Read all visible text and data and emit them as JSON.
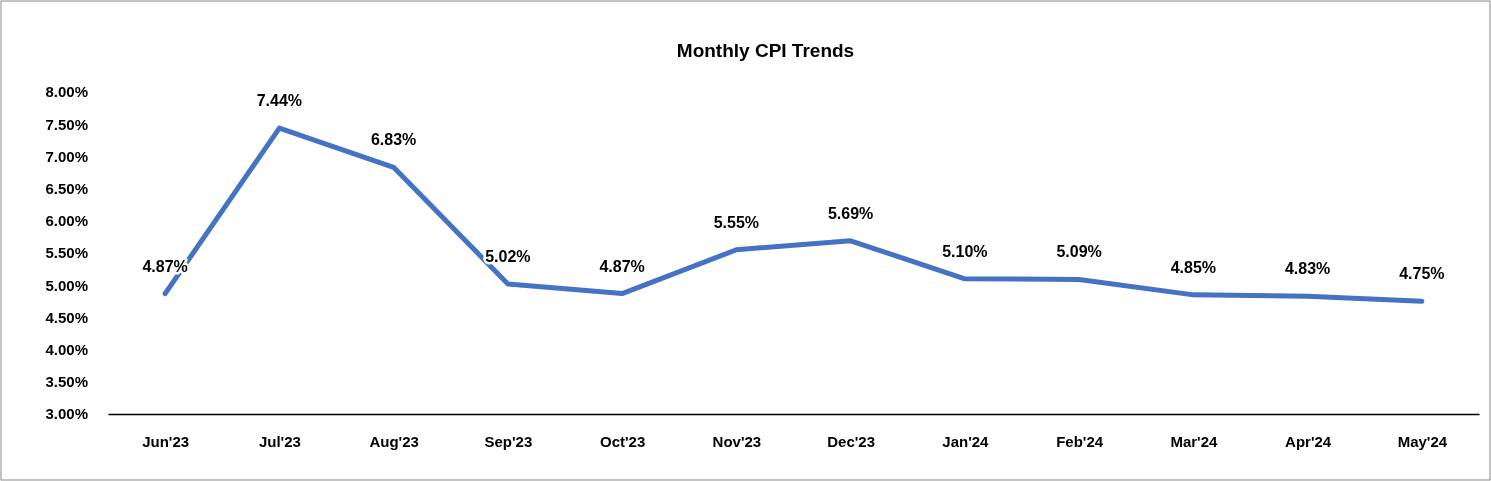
{
  "chart_data": {
    "type": "line",
    "title": "Monthly CPI Trends",
    "categories": [
      "Jun'23",
      "Jul'23",
      "Aug'23",
      "Sep'23",
      "Oct'23",
      "Nov'23",
      "Dec'23",
      "Jan'24",
      "Feb'24",
      "Mar'24",
      "Apr'24",
      "May'24"
    ],
    "series": [
      {
        "color": "#4472c4",
        "values": [
          4.87,
          7.44,
          6.83,
          5.02,
          4.87,
          5.55,
          5.69,
          5.1,
          5.09,
          4.85,
          4.83,
          4.75
        ],
        "value_labels": [
          "4.87%",
          "7.44%",
          "6.83%",
          "5.02%",
          "4.87%",
          "5.55%",
          "5.69%",
          "5.10%",
          "5.09%",
          "4.85%",
          "4.83%",
          "4.75%"
        ]
      }
    ],
    "ylim": [
      3,
      8
    ],
    "yticks": [
      {
        "value": 3,
        "label": "3.00%"
      },
      {
        "value": 3.5,
        "label": "3.50%"
      },
      {
        "value": 4,
        "label": "4.00%"
      },
      {
        "value": 4.5,
        "label": "4.50%"
      },
      {
        "value": 5,
        "label": "5.00%"
      },
      {
        "value": 5.5,
        "label": "5.50%"
      },
      {
        "value": 6,
        "label": "6.00%"
      },
      {
        "value": 6.5,
        "label": "6.50%"
      },
      {
        "value": 7,
        "label": "7.00%"
      },
      {
        "value": 7.5,
        "label": "7.50%"
      },
      {
        "value": 8,
        "label": "8.00%"
      }
    ],
    "grid": false,
    "marker": "none",
    "line_style": "solid"
  }
}
